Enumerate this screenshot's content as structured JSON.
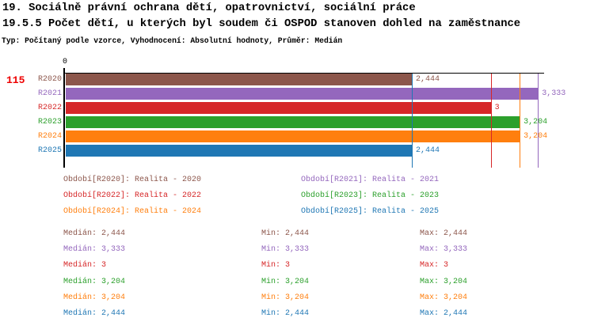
{
  "page": {
    "title_line1": "19. Sociálně právní ochrana dětí, opatrovnictví, sociální práce",
    "title_line2": "19.5.5 Počet dětí, u kterých byl soudem či OSPOD stanoven dohled na zaměstnance",
    "subtitle": "Typ: Počítaný podle vzorce, Vyhodnocení: Absolutní hodnoty, Průměr: Medián",
    "row_id": "115",
    "row_id_color": "#ee0000"
  },
  "chart_data": {
    "type": "bar",
    "orientation": "horizontal",
    "title": "19.5.5 Počet dětí, u kterých byl soudem či OSPOD stanoven dohled na zaměstnance",
    "categories": [
      "R2020",
      "R2021",
      "R2022",
      "R2023",
      "R2024",
      "R2025"
    ],
    "values": [
      2.444,
      3.333,
      3,
      3.204,
      3.204,
      2.444
    ],
    "value_labels": [
      "2,444",
      "3,333",
      "3",
      "3,204",
      "3,204",
      "2,444"
    ],
    "colors": [
      "#8c564b",
      "#9467bd",
      "#d62728",
      "#2ca02c",
      "#ff7f0e",
      "#1f77b4"
    ],
    "axis_zero_label": "0",
    "xlim": [
      0,
      3.376
    ],
    "grid": false,
    "median_lines": [
      {
        "value": 2.444,
        "color": "#1f77b4"
      },
      {
        "value": 3,
        "color": "#d62728"
      },
      {
        "value": 3.204,
        "color": "#ff7f0e"
      },
      {
        "value": 3.333,
        "color": "#9467bd"
      }
    ]
  },
  "legend": {
    "entries": [
      {
        "label": "Období[R2020]: Realita - 2020",
        "color": "#8c564b"
      },
      {
        "label": "Období[R2021]: Realita - 2021",
        "color": "#9467bd"
      },
      {
        "label": "Období[R2022]: Realita - 2022",
        "color": "#d62728"
      },
      {
        "label": "Období[R2023]: Realita - 2023",
        "color": "#2ca02c"
      },
      {
        "label": "Období[R2024]: Realita - 2024",
        "color": "#ff7f0e"
      },
      {
        "label": "Období[R2025]: Realita - 2025",
        "color": "#1f77b4"
      }
    ]
  },
  "stats": {
    "rows": [
      {
        "median": "Medián: 2,444",
        "min": "Min: 2,444",
        "max": "Max: 2,444",
        "color": "#8c564b"
      },
      {
        "median": "Medián: 3,333",
        "min": "Min: 3,333",
        "max": "Max: 3,333",
        "color": "#9467bd"
      },
      {
        "median": "Medián: 3",
        "min": "Min: 3",
        "max": "Max: 3",
        "color": "#d62728"
      },
      {
        "median": "Medián: 3,204",
        "min": "Min: 3,204",
        "max": "Max: 3,204",
        "color": "#2ca02c"
      },
      {
        "median": "Medián: 3,204",
        "min": "Min: 3,204",
        "max": "Max: 3,204",
        "color": "#ff7f0e"
      },
      {
        "median": "Medián: 2,444",
        "min": "Min: 2,444",
        "max": "Max: 2,444",
        "color": "#1f77b4"
      }
    ]
  }
}
